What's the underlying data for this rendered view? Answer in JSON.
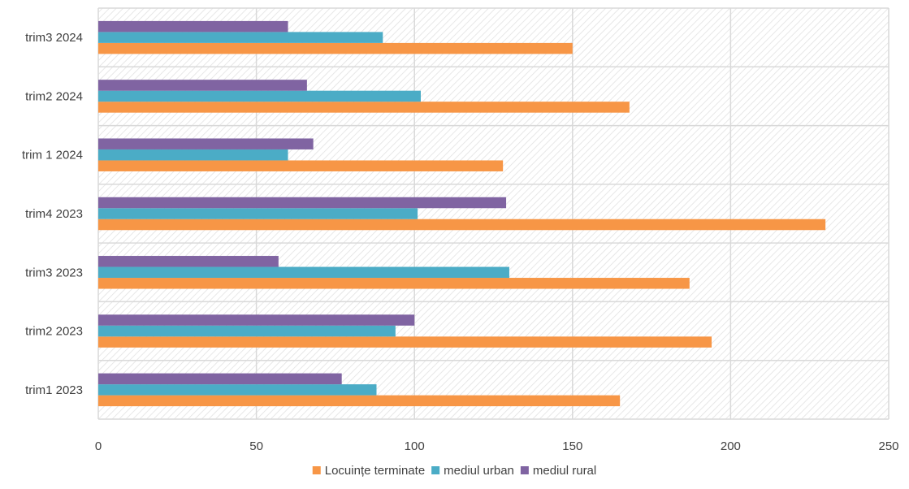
{
  "chart_data": {
    "type": "bar",
    "orientation": "horizontal",
    "categories": [
      "trim1 2023",
      "trim2 2023",
      "trim3 2023",
      "trim4 2023",
      "trim 1 2024",
      "trim2 2024",
      "trim3 2024"
    ],
    "series": [
      {
        "name": "Locuințe terminate",
        "values": [
          165,
          194,
          187,
          230,
          128,
          168,
          150
        ],
        "color": "#F79646"
      },
      {
        "name": "mediul urban",
        "values": [
          88,
          94,
          130,
          101,
          60,
          102,
          90
        ],
        "color": "#4BACC6"
      },
      {
        "name": "mediul rural",
        "values": [
          77,
          100,
          57,
          129,
          68,
          66,
          60
        ],
        "color": "#8064A2"
      }
    ],
    "xlim": [
      0,
      250
    ],
    "xticks": [
      "0",
      "50",
      "100",
      "150",
      "200",
      "250"
    ],
    "title": "",
    "xlabel": "",
    "ylabel": "",
    "grid": true,
    "background_pattern": "diagonal-hatch",
    "legend_position": "bottom"
  }
}
